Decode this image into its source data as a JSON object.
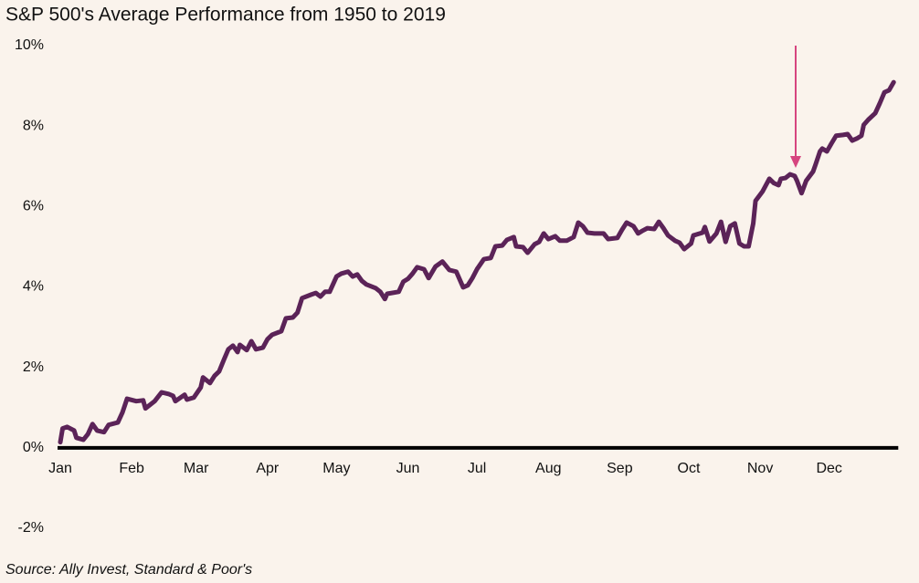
{
  "chart_data": {
    "type": "line",
    "title": "S&P 500's Average Performance from 1950 to 2019",
    "source": "Source: Ally Invest, Standard & Poor's",
    "color": "#5b2358",
    "x": [
      1,
      2,
      4,
      7,
      8,
      11,
      13,
      15,
      17,
      20,
      22,
      26,
      28,
      30,
      34,
      37,
      38,
      42,
      45,
      48,
      50,
      51,
      55,
      56,
      59,
      62,
      63,
      66,
      68,
      70,
      72,
      74,
      76,
      78,
      79,
      82,
      84,
      86,
      89,
      91,
      93,
      97,
      99,
      102,
      104,
      106,
      110,
      112,
      114,
      116,
      118,
      121,
      123,
      126,
      128,
      130,
      132,
      134,
      138,
      140,
      142,
      143,
      148,
      150,
      152,
      154,
      156,
      159,
      161,
      164,
      167,
      170,
      173,
      176,
      178,
      180,
      182,
      185,
      188,
      190,
      193,
      195,
      198,
      199,
      202,
      204,
      207,
      209,
      211,
      213,
      216,
      218,
      221,
      224,
      226,
      228,
      230,
      233,
      237,
      239,
      243,
      245,
      247,
      250,
      252,
      254,
      256,
      259,
      261,
      263,
      265,
      268,
      270,
      272,
      275,
      276,
      280,
      281,
      283,
      286,
      288,
      290,
      292,
      294,
      296,
      298,
      300,
      302,
      303,
      306,
      309,
      311,
      313,
      314,
      316,
      318,
      320,
      321,
      323,
      325,
      328,
      329,
      331,
      332,
      334,
      336,
      338,
      341,
      343,
      345,
      347,
      349,
      350,
      352,
      355,
      357,
      359,
      361,
      363
    ],
    "values": [
      0.14,
      0.48,
      0.52,
      0.43,
      0.25,
      0.2,
      0.34,
      0.59,
      0.43,
      0.39,
      0.57,
      0.63,
      0.88,
      1.22,
      1.16,
      1.18,
      0.98,
      1.16,
      1.38,
      1.34,
      1.29,
      1.16,
      1.32,
      1.2,
      1.25,
      1.5,
      1.75,
      1.61,
      1.79,
      1.9,
      2.18,
      2.45,
      2.54,
      2.38,
      2.56,
      2.43,
      2.65,
      2.45,
      2.49,
      2.7,
      2.81,
      2.9,
      3.22,
      3.24,
      3.36,
      3.72,
      3.81,
      3.85,
      3.76,
      3.88,
      3.88,
      4.26,
      4.33,
      4.38,
      4.26,
      4.31,
      4.15,
      4.06,
      3.97,
      3.88,
      3.7,
      3.83,
      3.88,
      4.13,
      4.2,
      4.33,
      4.49,
      4.44,
      4.22,
      4.51,
      4.63,
      4.42,
      4.38,
      3.99,
      4.04,
      4.22,
      4.44,
      4.69,
      4.72,
      5.01,
      5.03,
      5.17,
      5.24,
      5.01,
      4.99,
      4.85,
      5.06,
      5.12,
      5.33,
      5.19,
      5.26,
      5.15,
      5.15,
      5.24,
      5.6,
      5.51,
      5.35,
      5.33,
      5.33,
      5.19,
      5.22,
      5.42,
      5.6,
      5.51,
      5.33,
      5.4,
      5.46,
      5.44,
      5.62,
      5.46,
      5.28,
      5.15,
      5.1,
      4.94,
      5.08,
      5.28,
      5.35,
      5.49,
      5.13,
      5.33,
      5.62,
      5.12,
      5.51,
      5.58,
      5.08,
      5.01,
      5.01,
      5.58,
      6.14,
      6.37,
      6.69,
      6.58,
      6.53,
      6.69,
      6.71,
      6.8,
      6.76,
      6.64,
      6.33,
      6.64,
      6.87,
      7.03,
      7.37,
      7.44,
      7.37,
      7.57,
      7.76,
      7.78,
      7.8,
      7.64,
      7.69,
      7.76,
      8.03,
      8.16,
      8.32,
      8.57,
      8.84,
      8.89,
      9.09
    ],
    "xlim": [
      1,
      365
    ],
    "xticks": [
      {
        "value": 1,
        "label": "Jan"
      },
      {
        "value": 32,
        "label": "Feb"
      },
      {
        "value": 60,
        "label": "Mar"
      },
      {
        "value": 91,
        "label": "Apr"
      },
      {
        "value": 121,
        "label": "May"
      },
      {
        "value": 152,
        "label": "Jun"
      },
      {
        "value": 182,
        "label": "Jul"
      },
      {
        "value": 213,
        "label": "Aug"
      },
      {
        "value": 244,
        "label": "Sep"
      },
      {
        "value": 274,
        "label": "Oct"
      },
      {
        "value": 305,
        "label": "Nov"
      },
      {
        "value": 335,
        "label": "Dec"
      }
    ],
    "ylim": [
      -2,
      10
    ],
    "yticks": [
      {
        "value": -2,
        "label": "-2%"
      },
      {
        "value": 0,
        "label": "0%"
      },
      {
        "value": 2,
        "label": "2%"
      },
      {
        "value": 4,
        "label": "4%"
      },
      {
        "value": 6,
        "label": "6%"
      },
      {
        "value": 8,
        "label": "8%"
      },
      {
        "value": 10,
        "label": "10%"
      }
    ],
    "grid": false
  }
}
